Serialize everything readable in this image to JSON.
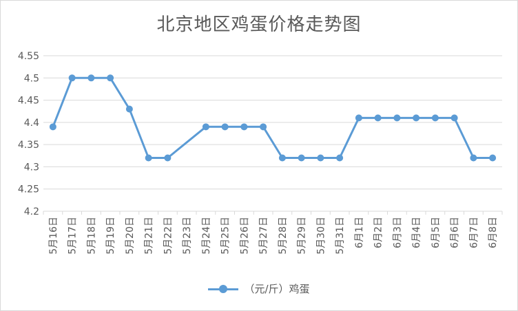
{
  "chart_data": {
    "type": "line",
    "title": "北京地区鸡蛋价格走势图",
    "categories": [
      "5月16日",
      "5月17日",
      "5月18日",
      "5月19日",
      "5月20日",
      "5月21日",
      "5月22日",
      "5月23日",
      "5月24日",
      "5月25日",
      "5月26日",
      "5月27日",
      "5月28日",
      "5月29日",
      "5月30日",
      "5月31日",
      "6月1日",
      "6月2日",
      "6月3日",
      "6月4日",
      "6月5日",
      "6月6日",
      "6月7日",
      "6月8日"
    ],
    "series": [
      {
        "name": "（元/斤）鸡蛋",
        "values": [
          4.39,
          4.5,
          4.5,
          4.5,
          4.43,
          4.32,
          4.32,
          null,
          4.39,
          4.39,
          4.39,
          4.39,
          4.32,
          4.32,
          4.32,
          4.32,
          4.41,
          4.41,
          4.41,
          4.41,
          4.41,
          4.41,
          4.32,
          4.32
        ],
        "color": "#5b9bd5"
      }
    ],
    "ylim": [
      4.2,
      4.55
    ],
    "yticks": [
      "4.2",
      "4.25",
      "4.3",
      "4.35",
      "4.4",
      "4.45",
      "4.5",
      "4.55"
    ],
    "grid": true,
    "legend_position": "bottom",
    "colors": {
      "line": "#5b9bd5",
      "grid": "#d9d9d9",
      "text": "#595959"
    }
  }
}
